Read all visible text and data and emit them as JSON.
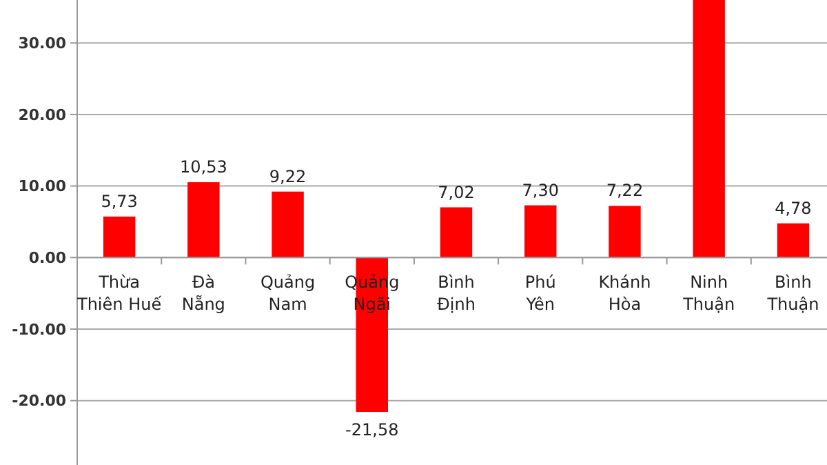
{
  "chart_data": {
    "type": "bar",
    "categories": [
      "Thừa Thiên Huế",
      "Đà Nẵng",
      "Quảng Nam",
      "Quảng Ngãi",
      "Bình Định",
      "Phú Yên",
      "Khánh Hòa",
      "Ninh Thuận",
      "Bình Thuận"
    ],
    "values": [
      5.73,
      10.53,
      9.22,
      -21.58,
      7.02,
      7.3,
      7.22,
      36,
      4.78
    ],
    "value_labels": [
      "5,73",
      "10,53",
      "9,22",
      "-21,58",
      "7,02",
      "7,30",
      "7,22",
      null,
      "4,78"
    ],
    "color": "#ff0000",
    "ylim": [
      -29,
      36
    ],
    "yticks": [
      {
        "value": -20,
        "label": "-20.00"
      },
      {
        "value": -10,
        "label": "-10.00"
      },
      {
        "value": 0,
        "label": "0.00"
      },
      {
        "value": 10,
        "label": "10.00"
      },
      {
        "value": 20,
        "label": "20.00"
      },
      {
        "value": 30,
        "label": "30.00"
      }
    ],
    "grid": "y"
  }
}
